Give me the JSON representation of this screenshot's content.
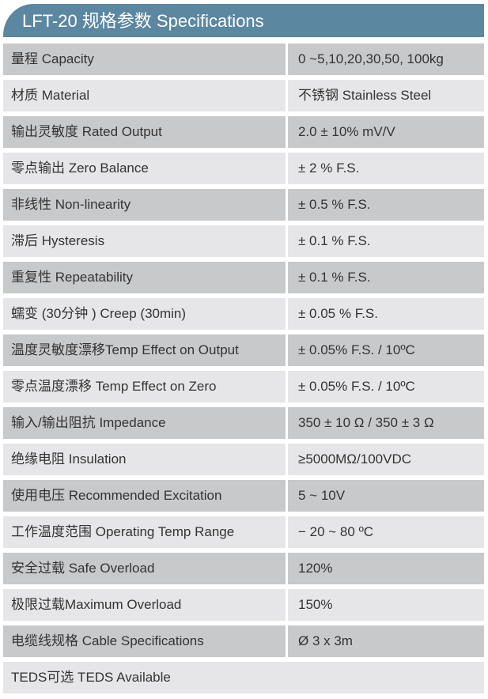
{
  "title": "LFT-20 规格参数 Specifications",
  "colors": {
    "header": "#5b87a0",
    "row_dark": "#c8c9cb",
    "row_light": "#e6e6e8"
  },
  "rows": [
    {
      "label": "量程 Capacity",
      "value": "0 ~5,10,20,30,50, 100kg"
    },
    {
      "label": "材质 Material",
      "value": "不锈钢 Stainless Steel"
    },
    {
      "label": "输出灵敏度 Rated Output",
      "value": "2.0 ± 10% mV/V"
    },
    {
      "label": "零点输出  Zero Balance",
      "value": "± 2 % F.S."
    },
    {
      "label": "非线性 Non-linearity",
      "value": "± 0.5 % F.S."
    },
    {
      "label": "滞后 Hysteresis",
      "value": "± 0.1 % F.S."
    },
    {
      "label": "重复性 Repeatability",
      "value": "± 0.1 % F.S."
    },
    {
      "label": "蠕变 (30分钟 ) Creep (30min)",
      "value": "± 0.05 % F.S."
    },
    {
      "label": "温度灵敏度漂移Temp Effect on Output",
      "value": "± 0.05% F.S. / 10ºC"
    },
    {
      "label": "零点温度漂移 Temp Effect on Zero",
      "value": "± 0.05% F.S. / 10ºC"
    },
    {
      "label": "输入/输出阻抗 Impedance",
      "value": "350 ± 10 Ω  /  350 ± 3 Ω"
    },
    {
      "label": "绝缘电阻  Insulation",
      "value": "≥5000MΩ/100VDC"
    },
    {
      "label": "使用电压 Recommended Excitation",
      "value": "5 ~ 10V"
    },
    {
      "label": "工作温度范围 Operating Temp  Range",
      "value": "− 20 ~ 80 ºC"
    },
    {
      "label": "安全过载 Safe Overload",
      "value": "120%"
    },
    {
      "label": "极限过载Maximum Overload",
      "value": "150%"
    },
    {
      "label": "电缆线规格 Cable Specifications",
      "value": "Ø 3 x 3m"
    }
  ],
  "footer_row": "TEDS可选 TEDS Available"
}
